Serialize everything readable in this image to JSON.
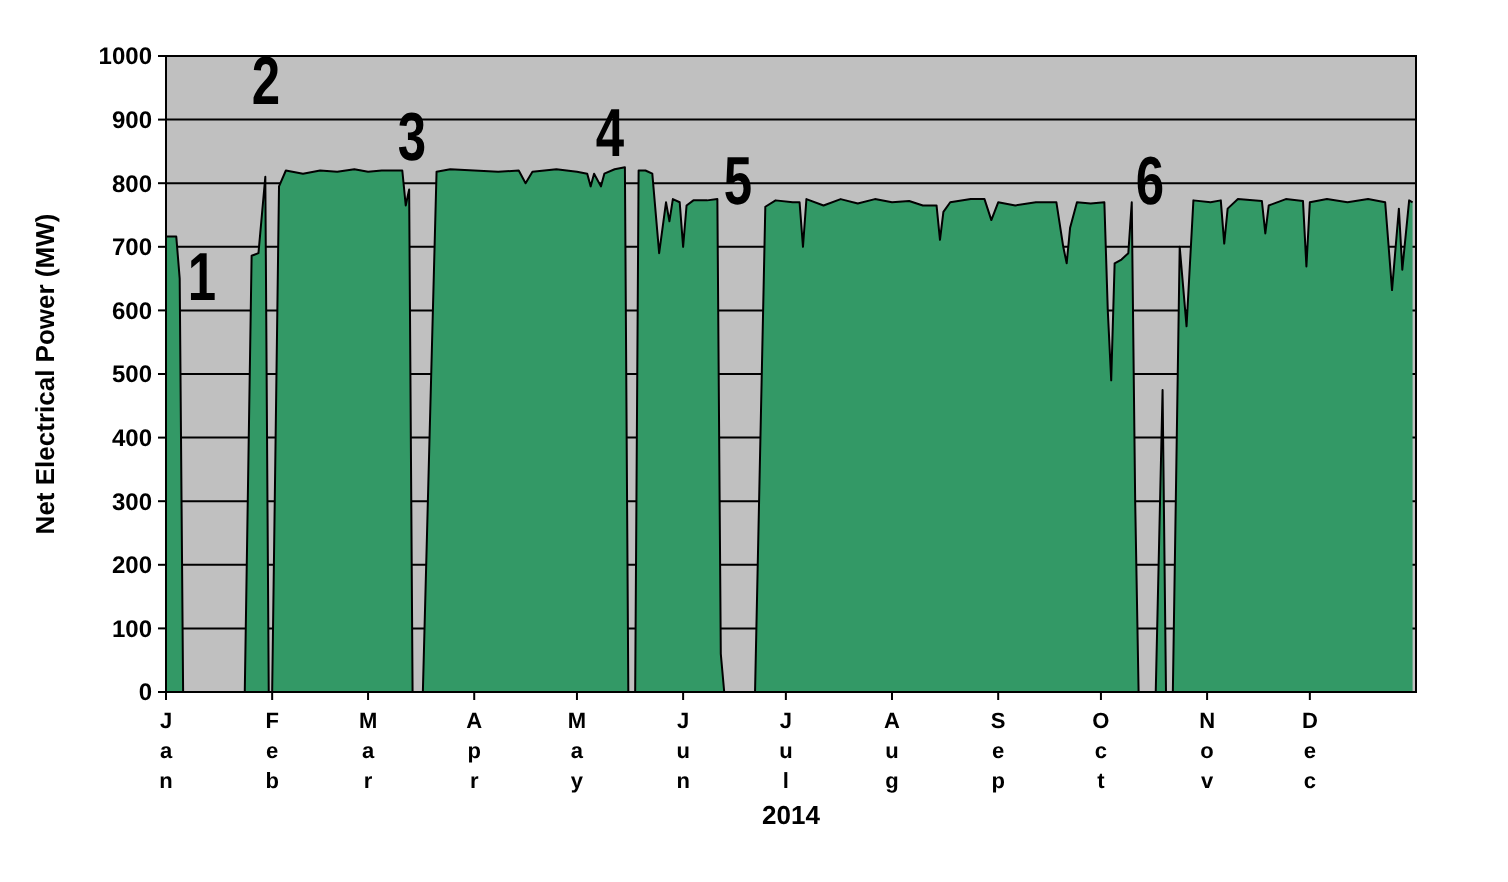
{
  "chart_data": {
    "type": "area",
    "xlabel": "2014",
    "ylabel": "Net Electrical Power (MW)",
    "xlim": [
      "2014-01-01",
      "2015-01-01"
    ],
    "xticks": [
      {
        "value": "2014-01-01",
        "label": "Jan"
      },
      {
        "value": "2014-02-01",
        "label": "Feb"
      },
      {
        "value": "2014-03-01",
        "label": "Mar"
      },
      {
        "value": "2014-04-01",
        "label": "Apr"
      },
      {
        "value": "2014-05-01",
        "label": "May"
      },
      {
        "value": "2014-06-01",
        "label": "Jun"
      },
      {
        "value": "2014-07-01",
        "label": "Jul"
      },
      {
        "value": "2014-08-01",
        "label": "Aug"
      },
      {
        "value": "2014-09-01",
        "label": "Sep"
      },
      {
        "value": "2014-10-01",
        "label": "Oct"
      },
      {
        "value": "2014-11-01",
        "label": "Nov"
      },
      {
        "value": "2014-12-01",
        "label": "Dec"
      }
    ],
    "ylim": [
      0,
      1000
    ],
    "yticks": [
      0,
      100,
      200,
      300,
      400,
      500,
      600,
      700,
      800,
      900,
      1000
    ],
    "grid": "y",
    "x": [
      "2014-01-01",
      "2014-01-04",
      "2014-01-05",
      "2014-01-06",
      "2014-01-24",
      "2014-01-26",
      "2014-01-28",
      "2014-01-30",
      "2014-01-31",
      "2014-02-01",
      "2014-02-03",
      "2014-02-05",
      "2014-02-10",
      "2014-02-15",
      "2014-02-20",
      "2014-02-25",
      "2014-03-01",
      "2014-03-05",
      "2014-03-11",
      "2014-03-12",
      "2014-03-13",
      "2014-03-14",
      "2014-03-17",
      "2014-03-21",
      "2014-03-25",
      "2014-04-01",
      "2014-04-08",
      "2014-04-14",
      "2014-04-16",
      "2014-04-18",
      "2014-04-25",
      "2014-05-01",
      "2014-05-04",
      "2014-05-05",
      "2014-05-06",
      "2014-05-08",
      "2014-05-09",
      "2014-05-12",
      "2014-05-15",
      "2014-05-16",
      "2014-05-18",
      "2014-05-19",
      "2014-05-21",
      "2014-05-23",
      "2014-05-25",
      "2014-05-27",
      "2014-05-28",
      "2014-05-29",
      "2014-05-31",
      "2014-06-01",
      "2014-06-02",
      "2014-06-04",
      "2014-06-08",
      "2014-06-11",
      "2014-06-12",
      "2014-06-13",
      "2014-06-22",
      "2014-06-25",
      "2014-06-28",
      "2014-07-03",
      "2014-07-05",
      "2014-07-06",
      "2014-07-07",
      "2014-07-12",
      "2014-07-17",
      "2014-07-22",
      "2014-07-27",
      "2014-08-01",
      "2014-08-06",
      "2014-08-10",
      "2014-08-14",
      "2014-08-15",
      "2014-08-16",
      "2014-08-18",
      "2014-08-24",
      "2014-08-28",
      "2014-08-30",
      "2014-09-01",
      "2014-09-06",
      "2014-09-12",
      "2014-09-18",
      "2014-09-20",
      "2014-09-21",
      "2014-09-22",
      "2014-09-24",
      "2014-09-28",
      "2014-10-02",
      "2014-10-03",
      "2014-10-04",
      "2014-10-05",
      "2014-10-07",
      "2014-10-09",
      "2014-10-10",
      "2014-10-11",
      "2014-10-12",
      "2014-10-17",
      "2014-10-19",
      "2014-10-20",
      "2014-10-22",
      "2014-10-24",
      "2014-10-26",
      "2014-10-28",
      "2014-11-02",
      "2014-11-05",
      "2014-11-06",
      "2014-11-07",
      "2014-11-10",
      "2014-11-17",
      "2014-11-18",
      "2014-11-19",
      "2014-11-24",
      "2014-11-29",
      "2014-11-30",
      "2014-12-01",
      "2014-12-06",
      "2014-12-12",
      "2014-12-18",
      "2014-12-23",
      "2014-12-25",
      "2014-12-27",
      "2014-12-28",
      "2014-12-30",
      "2014-12-31"
    ],
    "series": [
      {
        "color": "#339966",
        "values": [
          716,
          716,
          650,
          0,
          0,
          686,
          690,
          810,
          0,
          0,
          795,
          820,
          815,
          820,
          818,
          822,
          818,
          820,
          820,
          765,
          790,
          0,
          0,
          818,
          822,
          820,
          818,
          820,
          800,
          818,
          822,
          818,
          815,
          795,
          815,
          795,
          815,
          822,
          825,
          0,
          0,
          820,
          820,
          815,
          690,
          770,
          740,
          775,
          770,
          700,
          765,
          773,
          773,
          775,
          60,
          0,
          0,
          763,
          773,
          770,
          770,
          700,
          775,
          765,
          775,
          768,
          775,
          770,
          772,
          765,
          765,
          711,
          755,
          770,
          775,
          775,
          742,
          770,
          765,
          770,
          770,
          700,
          674,
          730,
          770,
          768,
          770,
          600,
          490,
          674,
          680,
          690,
          770,
          300,
          0,
          0,
          475,
          0,
          0,
          700,
          575,
          773,
          770,
          773,
          705,
          760,
          775,
          772,
          721,
          765,
          775,
          772,
          669,
          770,
          775,
          770,
          775,
          770,
          632,
          760,
          664,
          773,
          770
        ]
      }
    ],
    "annotations": [
      "1",
      "2",
      "3",
      "4",
      "5",
      "6"
    ]
  }
}
